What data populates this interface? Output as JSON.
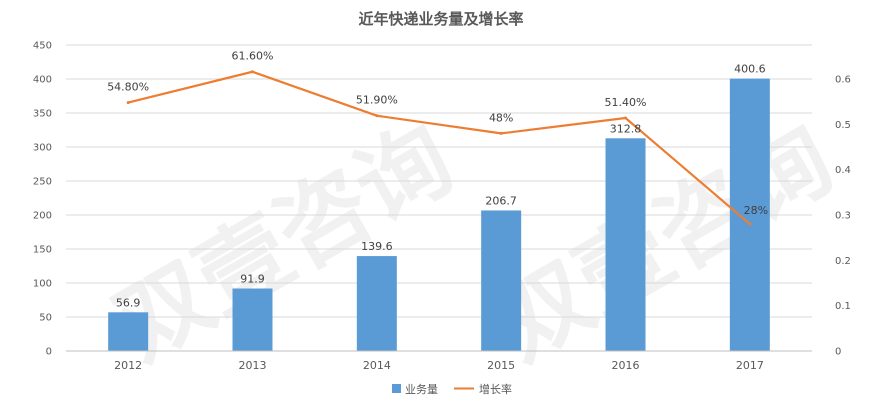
{
  "chart_data": {
    "type": "bar",
    "title": "近年快递业务量及增长率",
    "categories": [
      "2012",
      "2013",
      "2014",
      "2015",
      "2016",
      "2017"
    ],
    "series": [
      {
        "name": "业务量",
        "type": "bar",
        "axis": "left",
        "color": "#5B9BD5",
        "values": [
          56.9,
          91.9,
          139.6,
          206.7,
          312.8,
          400.6
        ],
        "value_labels": [
          "56.9",
          "91.9",
          "139.6",
          "206.7",
          "312.8",
          "400.6"
        ]
      },
      {
        "name": "增长率",
        "type": "line",
        "axis": "right",
        "color": "#ED7D31",
        "values": [
          0.548,
          0.616,
          0.519,
          0.48,
          0.514,
          0.28
        ],
        "value_labels": [
          "54.80%",
          "61.60%",
          "51.90%",
          "48%",
          "51.40%",
          "28%"
        ]
      }
    ],
    "y_left": {
      "min": 0,
      "max": 450,
      "ticks": [
        "0",
        "50",
        "100",
        "150",
        "200",
        "250",
        "300",
        "350",
        "400",
        "450"
      ]
    },
    "y_right": {
      "min": 0,
      "max": 0.675,
      "ticks": [
        "0",
        "0.1",
        "0.2",
        "0.3",
        "0.4",
        "0.5",
        "0.6"
      ]
    },
    "grid": true,
    "legend_position": "bottom-center",
    "watermark": "双壹咨询"
  }
}
